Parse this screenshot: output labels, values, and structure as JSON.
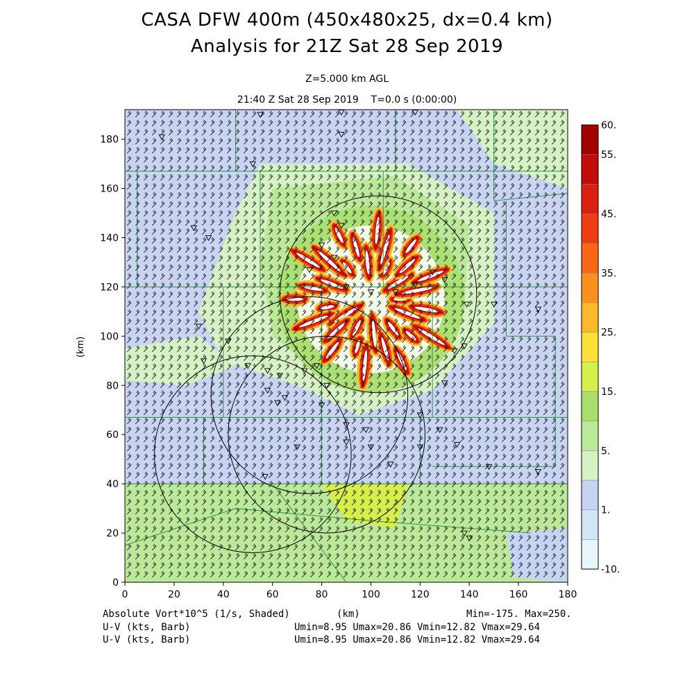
{
  "titles": {
    "line1": "CASA DFW 400m (450x480x25, dx=0.4 km)",
    "line2": "Analysis for 21Z Sat 28 Sep 2019",
    "level": "Z=5.000 km AGL",
    "time": "21:40 Z Sat 28 Sep 2019    T=0.0 s (0:00:00)"
  },
  "footer": {
    "field1": "Absolute Vort*10^5 (1/s, Shaded)",
    "field2": "U-V (kts, Barb)",
    "field3": "U-V (kts, Barb)",
    "xunits": "(km)",
    "minmax": "Min=-175. Max=250.",
    "uv1": "Umin=8.95 Umax=20.86 Vmin=12.82 Vmax=29.64",
    "uv2": "Umin=8.95 Umax=20.86 Vmin=12.82 Vmax=29.64"
  },
  "chart_data": {
    "type": "heatmap",
    "xlabel": "",
    "ylabel": "(km)",
    "xlim": [
      0,
      180
    ],
    "ylim": [
      0,
      192
    ],
    "x_ticks": [
      0,
      20,
      40,
      60,
      80,
      100,
      120,
      140,
      160,
      180
    ],
    "y_ticks": [
      0,
      20,
      40,
      60,
      80,
      100,
      120,
      140,
      160,
      180
    ],
    "colorbar": {
      "labels": [
        "60.",
        "55.",
        "45.",
        "35.",
        "25.",
        "15.",
        "5.",
        "1.",
        "-10."
      ],
      "levels": [
        -10,
        -5,
        1,
        3,
        5,
        10,
        15,
        20,
        25,
        30,
        35,
        40,
        45,
        50,
        55,
        60
      ],
      "colors": [
        "#e6f6fb",
        "#cfe6f7",
        "#c7d3f2",
        "#d6f2c4",
        "#bce899",
        "#a8df6e",
        "#d7ef4a",
        "#fbe13a",
        "#fdb92a",
        "#fd8f1c",
        "#f86616",
        "#ef3d12",
        "#dc1f0e",
        "#c20c0a",
        "#a30000"
      ]
    },
    "radar_rings": [
      {
        "cx": 103,
        "cy": 117,
        "r": 40
      },
      {
        "cx": 75,
        "cy": 76,
        "r": 40
      },
      {
        "cx": 52,
        "cy": 52,
        "r": 40
      },
      {
        "cx": 82,
        "cy": 60,
        "r": 40
      }
    ],
    "vortex_center": [
      100,
      115
    ],
    "wind_barbs": {
      "direction_deg": 225,
      "speed_kts": 25
    }
  }
}
